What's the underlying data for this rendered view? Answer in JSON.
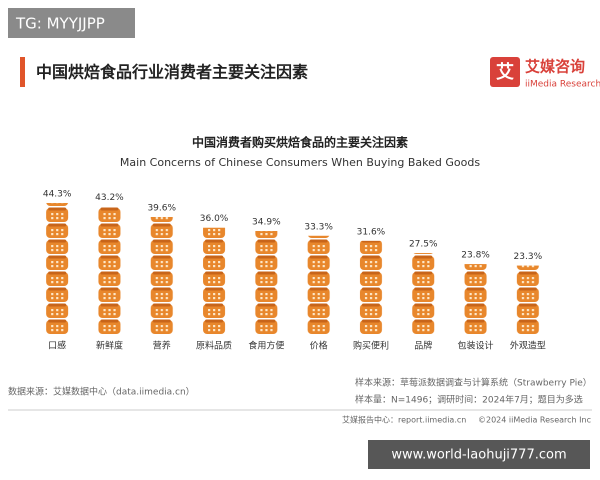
{
  "watermark_top": "TG: MYYJJPP",
  "header": {
    "title": "中国烘焙食品行业消费者主要关注因素",
    "logo_mark": "艾",
    "logo_name": "艾媒咨询",
    "logo_sub": "iiMedia Research"
  },
  "chart_data": {
    "type": "pictogram_bar",
    "title": "中国消费者购买烘焙食品的主要关注因素",
    "subtitle": "Main Concerns of Chinese Consumers When Buying Baked Goods",
    "categories": [
      "口感",
      "新鲜度",
      "营养",
      "原料品质",
      "食用方便",
      "价格",
      "购买便利",
      "品牌",
      "包装设计",
      "外观造型"
    ],
    "values": [
      44.3,
      43.2,
      39.6,
      36.0,
      34.9,
      33.3,
      31.6,
      27.5,
      23.8,
      23.3
    ],
    "value_labels": [
      "44.3%",
      "43.2%",
      "39.6%",
      "36.0%",
      "34.9%",
      "33.3%",
      "31.6%",
      "27.5%",
      "23.8%",
      "23.3%"
    ],
    "color": "#e8872c"
  },
  "footer": {
    "source": "数据来源：艾媒数据中心（data.iimedia.cn）",
    "sample_source": "样本来源：草莓派数据调查与计算系统（Strawberry Pie）",
    "sample_size": "样本量：N=1496；调研时间：2024年7月；题目为多选",
    "report_center": "艾媒报告中心：report.iimedia.cn",
    "copyright": "©2024 iiMedia Research Inc"
  },
  "watermark_bottom": "www.world-laohuji777.com"
}
